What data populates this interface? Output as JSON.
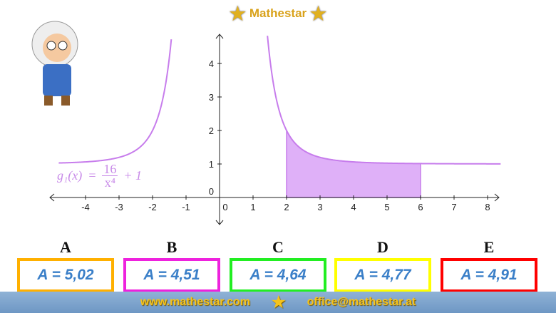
{
  "header": {
    "brand": "Mathestar"
  },
  "formula": {
    "lhs": "g₁(x)",
    "eq": "=",
    "num": "16",
    "den": "x⁴",
    "rest": "+ 1"
  },
  "chart_data": {
    "type": "line",
    "function": "g1(x) = 16/x^4 + 1",
    "xlim": [
      -4.8,
      8.4
    ],
    "ylim": [
      -0.8,
      4.9
    ],
    "x_ticks": [
      "-4",
      "-3",
      "-2",
      "-1",
      "0",
      "1",
      "2",
      "3",
      "4",
      "5",
      "6",
      "7",
      "8"
    ],
    "y_ticks": [
      "0",
      "1",
      "2",
      "3",
      "4"
    ],
    "shaded_interval": [
      2,
      6
    ],
    "curve_color": "#c77dec",
    "fill_color": "#dfb0f8"
  },
  "options": [
    {
      "letter": "A",
      "value": "A = 5,02",
      "color": "#ffb000"
    },
    {
      "letter": "B",
      "value": "A = 4,51",
      "color": "#ee22dd"
    },
    {
      "letter": "C",
      "value": "A = 4,64",
      "color": "#22ee22"
    },
    {
      "letter": "D",
      "value": "A = 4,77",
      "color": "#ffff00"
    },
    {
      "letter": "E",
      "value": "A = 4,91",
      "color": "#ff0000"
    }
  ],
  "footer": {
    "website": "www.mathestar.com",
    "email": "office@mathestar.at"
  }
}
